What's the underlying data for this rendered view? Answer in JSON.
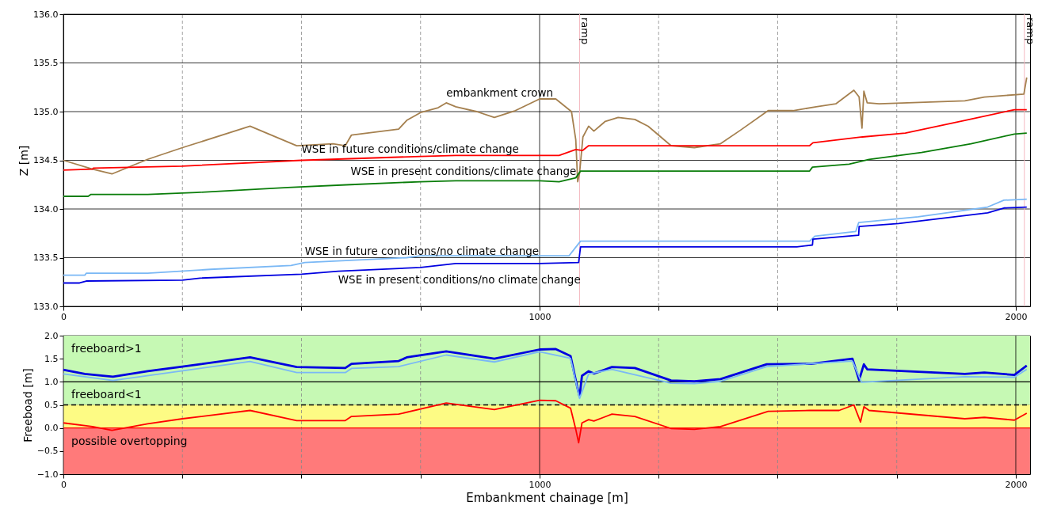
{
  "chart_data": [
    {
      "type": "line",
      "ylabel": "Z [m]",
      "xlim": [
        0,
        2030
      ],
      "ylim": [
        133,
        136
      ],
      "xticks": [
        0,
        {
          "value": 250,
          "label": null
        },
        {
          "value": 500,
          "label": null
        },
        {
          "value": 750,
          "label": null
        },
        1000,
        {
          "value": 1250,
          "label": null
        },
        {
          "value": 1500,
          "label": null
        },
        {
          "value": 1750,
          "label": null
        },
        2000
      ],
      "yticks": [
        {
          "value": 133,
          "label": "133.0"
        },
        133.5,
        {
          "value": 134,
          "label": "134.0"
        },
        134.5,
        {
          "value": 135,
          "label": "135.0"
        },
        135.5,
        {
          "value": 136,
          "label": "136.0"
        }
      ],
      "grid": true,
      "ref_lines": [
        {
          "axis": "x",
          "value": 1084,
          "label": "ramp",
          "color": "#f4b8c0"
        },
        {
          "axis": "x",
          "value": 2018,
          "label": "ramp",
          "color": "#f4b8c0"
        }
      ],
      "series": [
        {
          "name": "embankment crown",
          "color": "#a5804f",
          "x": [
            0,
            61,
            102,
            177,
            250,
            392,
            490,
            566,
            592,
            605,
            704,
            721,
            750,
            787,
            804,
            824,
            868,
            905,
            949,
            1000,
            1034,
            1067,
            1076,
            1080,
            1084,
            1091,
            1103,
            1114,
            1138,
            1165,
            1200,
            1228,
            1276,
            1325,
            1380,
            1422,
            1480,
            1532,
            1581,
            1622,
            1660,
            1671,
            1677,
            1681,
            1688,
            1713,
            1893,
            1934,
            2017,
            2023
          ],
          "values": [
            134.5,
            134.41,
            134.36,
            134.51,
            134.63,
            134.85,
            134.65,
            134.67,
            134.65,
            134.76,
            134.82,
            134.91,
            134.99,
            135.04,
            135.09,
            135.05,
            135.0,
            134.94,
            135.01,
            135.13,
            135.13,
            135.0,
            134.71,
            134.28,
            134.37,
            134.74,
            134.85,
            134.8,
            134.9,
            134.94,
            134.92,
            134.85,
            134.65,
            134.63,
            134.67,
            134.81,
            135.01,
            135.01,
            135.05,
            135.08,
            135.22,
            135.15,
            134.83,
            135.21,
            135.09,
            135.08,
            135.11,
            135.15,
            135.18,
            135.35
          ]
        },
        {
          "name": "WSE in future conditions/climate change",
          "color": "#ff0000",
          "x": [
            0,
            61,
            63,
            250,
            500,
            750,
            824,
            1000,
            1041,
            1076,
            1090,
            1103,
            1567,
            1574,
            1678,
            1768,
            1893,
            1997,
            2023
          ],
          "values": [
            134.4,
            134.41,
            134.42,
            134.44,
            134.5,
            134.54,
            134.55,
            134.55,
            134.55,
            134.61,
            134.6,
            134.65,
            134.65,
            134.68,
            134.74,
            134.78,
            134.91,
            135.02,
            135.02
          ]
        },
        {
          "name": "WSE in present conditions/climate change",
          "color": "#0a7d0a",
          "x": [
            0,
            52,
            58,
            177,
            280,
            471,
            603,
            750,
            824,
            1000,
            1041,
            1076,
            1086,
            1567,
            1573,
            1650,
            1692,
            1802,
            1906,
            1997,
            2023
          ],
          "values": [
            134.13,
            134.13,
            134.15,
            134.15,
            134.17,
            134.22,
            134.25,
            134.28,
            134.29,
            134.29,
            134.28,
            134.32,
            134.39,
            134.39,
            134.43,
            134.46,
            134.51,
            134.58,
            134.67,
            134.77,
            134.78
          ]
        },
        {
          "name": "WSE in future conditions/no climate change",
          "color": "#7ab8f5",
          "x": [
            0,
            45,
            48,
            177,
            309,
            478,
            507,
            721,
            750,
            1000,
            1062,
            1086,
            1567,
            1578,
            1664,
            1670,
            1795,
            1941,
            1975,
            2023
          ],
          "values": [
            133.32,
            133.32,
            133.34,
            133.34,
            133.38,
            133.42,
            133.45,
            133.5,
            133.52,
            133.52,
            133.52,
            133.67,
            133.67,
            133.72,
            133.77,
            133.86,
            133.92,
            134.02,
            134.09,
            134.1
          ]
        },
        {
          "name": "WSE in present conditions/no climate change",
          "color": "#0000e0",
          "x": [
            0,
            34,
            48,
            250,
            287,
            500,
            577,
            750,
            824,
            1000,
            1082,
            1086,
            1540,
            1573,
            1574,
            1670,
            1671,
            1754,
            1941,
            1975,
            2023
          ],
          "values": [
            133.24,
            133.24,
            133.26,
            133.27,
            133.29,
            133.33,
            133.36,
            133.4,
            133.44,
            133.44,
            133.45,
            133.61,
            133.61,
            133.63,
            133.69,
            133.73,
            133.82,
            133.85,
            133.96,
            134.01,
            134.02
          ]
        }
      ]
    },
    {
      "type": "line",
      "xlabel": "Embankment chainage [m]",
      "ylabel": "Freeboad [m]",
      "xlim": [
        0,
        2030
      ],
      "ylim": [
        -1,
        2
      ],
      "xticks": [
        0,
        {
          "value": 250,
          "label": null
        },
        {
          "value": 500,
          "label": null
        },
        {
          "value": 750,
          "label": null
        },
        1000,
        {
          "value": 1250,
          "label": null
        },
        {
          "value": 1500,
          "label": null
        },
        {
          "value": 1750,
          "label": null
        },
        2000
      ],
      "yticks": [
        {
          "value": -1,
          "label": "−1.0"
        },
        {
          "value": -0.5,
          "label": "−0.5"
        },
        {
          "value": 0,
          "label": "0.0"
        },
        0.5,
        {
          "value": 1,
          "label": "1.0"
        },
        1.5,
        {
          "value": 2,
          "label": "2.0"
        }
      ],
      "grid": true,
      "bands": [
        {
          "axis": "y",
          "from": 1,
          "to": 2,
          "label": "freeboard>1",
          "color": "#c6f9b4"
        },
        {
          "axis": "y",
          "from": 0.5,
          "to": 1,
          "label": "freeboard<1",
          "color": "#c6f9b4"
        },
        {
          "axis": "y",
          "from": 0,
          "to": 0.5,
          "label": null,
          "color": "#fdfb84"
        },
        {
          "axis": "y",
          "from": -1,
          "to": 0,
          "label": "possible overtopping",
          "color": "#ff7a7a"
        }
      ],
      "ref_lines": [
        {
          "axis": "y",
          "value": 0.5,
          "label": null,
          "color": "#000000",
          "line_style": "dashed"
        },
        {
          "axis": "y",
          "value": 0,
          "label": null,
          "color": "#ff0000"
        },
        {
          "axis": "y",
          "value": 1,
          "label": null,
          "color": "#000000"
        }
      ],
      "series": [
        {
          "color": "#0000e0",
          "x": [
            0,
            45,
            104,
            177,
            250,
            392,
            490,
            592,
            605,
            704,
            721,
            804,
            905,
            1000,
            1034,
            1065,
            1079,
            1084,
            1089,
            1103,
            1114,
            1152,
            1200,
            1276,
            1325,
            1380,
            1477,
            1570,
            1657,
            1671,
            1681,
            1688,
            1893,
            1934,
            1997,
            2023
          ],
          "values": [
            1.26,
            1.17,
            1.11,
            1.23,
            1.33,
            1.53,
            1.32,
            1.3,
            1.39,
            1.45,
            1.53,
            1.66,
            1.5,
            1.7,
            1.71,
            1.56,
            0.89,
            0.68,
            1.13,
            1.23,
            1.18,
            1.32,
            1.3,
            1.03,
            1.01,
            1.06,
            1.38,
            1.39,
            1.5,
            1.04,
            1.38,
            1.27,
            1.17,
            1.2,
            1.15,
            1.35
          ]
        },
        {
          "color": "#7ab8f5",
          "x": [
            0,
            104,
            392,
            490,
            592,
            605,
            704,
            804,
            905,
            1000,
            1065,
            1084,
            1103,
            1152,
            1276,
            1325,
            1380,
            1477,
            1657,
            1676,
            1893,
            1997,
            2023
          ],
          "values": [
            1.17,
            1.03,
            1.44,
            1.2,
            1.2,
            1.29,
            1.33,
            1.58,
            1.43,
            1.65,
            1.51,
            0.64,
            1.17,
            1.27,
            0.97,
            0.96,
            1.01,
            1.33,
            1.45,
            0.99,
            1.11,
            1.1,
            1.27
          ]
        },
        {
          "color": "#ff0000",
          "x": [
            0,
            61,
            102,
            177,
            250,
            392,
            490,
            592,
            605,
            704,
            804,
            905,
            1000,
            1034,
            1065,
            1076,
            1082,
            1089,
            1103,
            1114,
            1152,
            1200,
            1276,
            1325,
            1380,
            1480,
            1567,
            1629,
            1660,
            1674,
            1681,
            1692,
            1893,
            1934,
            1997,
            2023
          ],
          "values": [
            0.11,
            0.03,
            -0.05,
            0.09,
            0.2,
            0.38,
            0.16,
            0.16,
            0.25,
            0.3,
            0.54,
            0.4,
            0.6,
            0.59,
            0.43,
            -0.03,
            -0.32,
            0.11,
            0.18,
            0.15,
            0.3,
            0.25,
            -0.01,
            -0.03,
            0.03,
            0.36,
            0.38,
            0.38,
            0.5,
            0.13,
            0.46,
            0.38,
            0.2,
            0.23,
            0.17,
            0.32
          ]
        }
      ]
    }
  ]
}
